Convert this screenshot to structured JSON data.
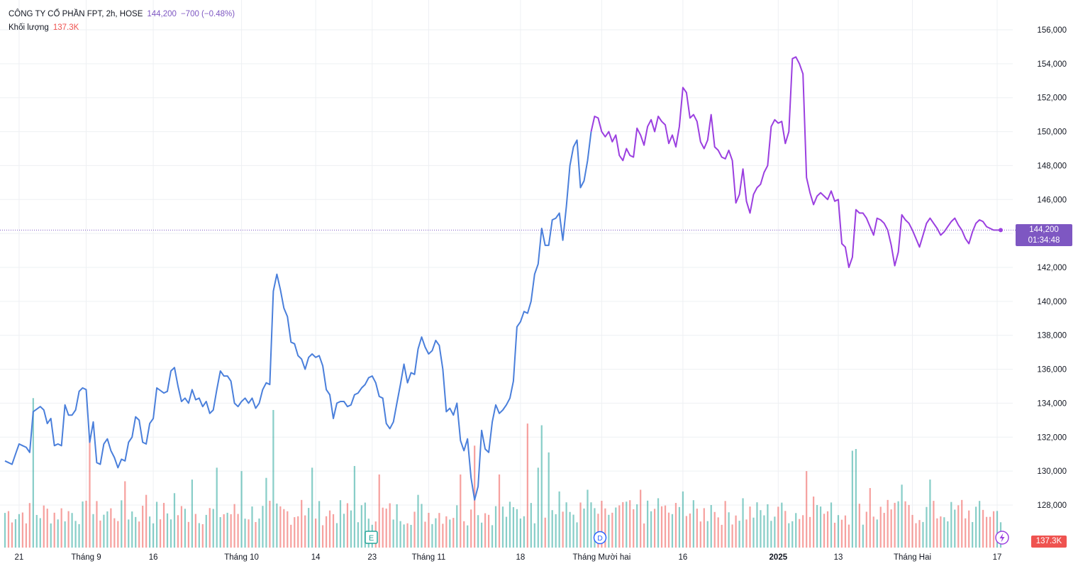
{
  "legend": {
    "symbol": "CÔNG TY CỔ PHẦN FPT, 2h, HOSE",
    "last": "144,200",
    "change": "−700 (−0.48%)",
    "volume_label": "Khối lượng",
    "volume_value": "137.3K"
  },
  "price_tag": {
    "price": "144,200",
    "countdown": "01:34:48"
  },
  "volume_tag": "137.3K",
  "markers": {
    "earnings": "E",
    "dividend": "D"
  },
  "colors": {
    "line_blue": "#4a7fdb",
    "line_purple": "#9b3fe0",
    "vol_up": "#26a69a",
    "vol_down": "#ef5350",
    "grid": "#eef0f3",
    "accent": "#7e57c2"
  },
  "chart_data": {
    "type": "line",
    "title": "CÔNG TY CỔ PHẦN FPT, 2h, HOSE",
    "ylim": [
      126500,
      157000
    ],
    "y_ticks": [
      128000,
      130000,
      132000,
      134000,
      136000,
      138000,
      140000,
      142000,
      144000,
      146000,
      148000,
      150000,
      152000,
      154000,
      156000
    ],
    "y_tick_labels": [
      "128,000",
      "130,000",
      "132,000",
      "134,000",
      "136,000",
      "138,000",
      "140,000",
      "142,000",
      "144,000",
      "146,000",
      "148,000",
      "150,000",
      "152,000",
      "154,000",
      "156,000"
    ],
    "x_labels": [
      {
        "text": "21",
        "i": 4,
        "bold": false
      },
      {
        "text": "Tháng 9",
        "i": 23,
        "bold": false
      },
      {
        "text": "16",
        "i": 42,
        "bold": false
      },
      {
        "text": "Tháng 10",
        "i": 67,
        "bold": false
      },
      {
        "text": "14",
        "i": 88,
        "bold": false
      },
      {
        "text": "23",
        "i": 104,
        "bold": false
      },
      {
        "text": "Tháng 11",
        "i": 120,
        "bold": false
      },
      {
        "text": "18",
        "i": 146,
        "bold": false
      },
      {
        "text": "Tháng Mười hai",
        "i": 169,
        "bold": false
      },
      {
        "text": "16",
        "i": 192,
        "bold": false
      },
      {
        "text": "2025",
        "i": 219,
        "bold": true
      },
      {
        "text": "13",
        "i": 236,
        "bold": false
      },
      {
        "text": "Tháng Hai",
        "i": 257,
        "bold": false
      },
      {
        "text": "17",
        "i": 281,
        "bold": false
      }
    ],
    "n_bars": 283,
    "color_switch_index": 166,
    "price_keypoints": [
      [
        0,
        130600
      ],
      [
        2,
        130400
      ],
      [
        4,
        131600
      ],
      [
        6,
        131400
      ],
      [
        7,
        131100
      ],
      [
        8,
        133500
      ],
      [
        10,
        133800
      ],
      [
        11,
        133600
      ],
      [
        12,
        132800
      ],
      [
        13,
        133100
      ],
      [
        14,
        131500
      ],
      [
        15,
        131600
      ],
      [
        16,
        131500
      ],
      [
        17,
        133900
      ],
      [
        18,
        133300
      ],
      [
        19,
        133300
      ],
      [
        20,
        133600
      ],
      [
        21,
        134700
      ],
      [
        22,
        134900
      ],
      [
        23,
        134800
      ],
      [
        24,
        131700
      ],
      [
        25,
        132900
      ],
      [
        26,
        130500
      ],
      [
        27,
        130400
      ],
      [
        28,
        131600
      ],
      [
        29,
        131900
      ],
      [
        30,
        131200
      ],
      [
        31,
        130800
      ],
      [
        32,
        130200
      ],
      [
        33,
        130700
      ],
      [
        34,
        130600
      ],
      [
        35,
        131700
      ],
      [
        36,
        132000
      ],
      [
        37,
        133200
      ],
      [
        38,
        133000
      ],
      [
        39,
        131700
      ],
      [
        40,
        131600
      ],
      [
        41,
        132800
      ],
      [
        42,
        133100
      ],
      [
        43,
        134900
      ],
      [
        45,
        134600
      ],
      [
        46,
        134700
      ],
      [
        47,
        135900
      ],
      [
        48,
        136100
      ],
      [
        49,
        135000
      ],
      [
        50,
        134100
      ],
      [
        51,
        134300
      ],
      [
        52,
        134000
      ],
      [
        53,
        134800
      ],
      [
        54,
        134200
      ],
      [
        55,
        134300
      ],
      [
        56,
        133800
      ],
      [
        57,
        134100
      ],
      [
        58,
        133400
      ],
      [
        59,
        133600
      ],
      [
        60,
        134800
      ],
      [
        61,
        135900
      ],
      [
        62,
        135600
      ],
      [
        63,
        135600
      ],
      [
        64,
        135300
      ],
      [
        65,
        134000
      ],
      [
        66,
        133800
      ],
      [
        67,
        134100
      ],
      [
        68,
        134300
      ],
      [
        69,
        134000
      ],
      [
        70,
        134300
      ],
      [
        71,
        133700
      ],
      [
        72,
        134000
      ],
      [
        73,
        134800
      ],
      [
        74,
        135200
      ],
      [
        75,
        135100
      ],
      [
        76,
        140600
      ],
      [
        77,
        141600
      ],
      [
        78,
        140700
      ],
      [
        79,
        139600
      ],
      [
        80,
        139100
      ],
      [
        81,
        137600
      ],
      [
        82,
        137500
      ],
      [
        83,
        136800
      ],
      [
        84,
        136600
      ],
      [
        85,
        136000
      ],
      [
        86,
        136700
      ],
      [
        87,
        136900
      ],
      [
        88,
        136700
      ],
      [
        89,
        136800
      ],
      [
        90,
        136200
      ],
      [
        91,
        134800
      ],
      [
        92,
        134500
      ],
      [
        93,
        133100
      ],
      [
        94,
        134000
      ],
      [
        95,
        134100
      ],
      [
        96,
        134100
      ],
      [
        97,
        133800
      ],
      [
        98,
        133900
      ],
      [
        99,
        134500
      ],
      [
        100,
        134600
      ],
      [
        101,
        134900
      ],
      [
        102,
        135100
      ],
      [
        103,
        135500
      ],
      [
        104,
        135600
      ],
      [
        105,
        135200
      ],
      [
        106,
        134400
      ],
      [
        107,
        134300
      ],
      [
        108,
        132800
      ],
      [
        109,
        132500
      ],
      [
        110,
        132900
      ],
      [
        111,
        134000
      ],
      [
        112,
        135100
      ],
      [
        113,
        136300
      ],
      [
        114,
        135200
      ],
      [
        115,
        135800
      ],
      [
        116,
        135700
      ],
      [
        117,
        137200
      ],
      [
        118,
        137900
      ],
      [
        119,
        137300
      ],
      [
        120,
        136900
      ],
      [
        121,
        137100
      ],
      [
        122,
        137700
      ],
      [
        123,
        137400
      ],
      [
        124,
        136000
      ],
      [
        125,
        133500
      ],
      [
        126,
        133700
      ],
      [
        127,
        133300
      ],
      [
        128,
        134000
      ],
      [
        129,
        131800
      ],
      [
        130,
        131200
      ],
      [
        131,
        131900
      ],
      [
        132,
        129600
      ],
      [
        133,
        128300
      ],
      [
        134,
        129100
      ],
      [
        135,
        132400
      ],
      [
        136,
        131300
      ],
      [
        137,
        131100
      ],
      [
        138,
        132900
      ],
      [
        139,
        133900
      ],
      [
        140,
        133400
      ],
      [
        141,
        133600
      ],
      [
        142,
        133900
      ],
      [
        143,
        134300
      ],
      [
        144,
        135300
      ],
      [
        145,
        138500
      ],
      [
        146,
        138800
      ],
      [
        147,
        139400
      ],
      [
        148,
        139300
      ],
      [
        149,
        140000
      ],
      [
        150,
        141600
      ],
      [
        151,
        142200
      ],
      [
        152,
        144300
      ],
      [
        153,
        143300
      ],
      [
        154,
        143300
      ],
      [
        155,
        144800
      ],
      [
        156,
        144900
      ],
      [
        157,
        145200
      ],
      [
        158,
        143600
      ],
      [
        159,
        145600
      ],
      [
        160,
        148000
      ],
      [
        161,
        149100
      ],
      [
        162,
        149500
      ],
      [
        163,
        146700
      ],
      [
        164,
        147100
      ],
      [
        165,
        148300
      ],
      [
        166,
        150000
      ],
      [
        167,
        150900
      ],
      [
        168,
        150800
      ],
      [
        169,
        150000
      ],
      [
        170,
        149700
      ],
      [
        171,
        150000
      ],
      [
        172,
        149400
      ],
      [
        173,
        149800
      ],
      [
        174,
        148600
      ],
      [
        175,
        148300
      ],
      [
        176,
        149000
      ],
      [
        177,
        148600
      ],
      [
        178,
        148500
      ],
      [
        179,
        150200
      ],
      [
        180,
        149800
      ],
      [
        181,
        149200
      ],
      [
        182,
        150300
      ],
      [
        183,
        150700
      ],
      [
        184,
        150000
      ],
      [
        185,
        150900
      ],
      [
        186,
        150600
      ],
      [
        187,
        150400
      ],
      [
        188,
        149300
      ],
      [
        189,
        149800
      ],
      [
        190,
        149100
      ],
      [
        191,
        150300
      ],
      [
        192,
        152600
      ],
      [
        193,
        152300
      ],
      [
        194,
        150800
      ],
      [
        195,
        151000
      ],
      [
        196,
        150600
      ],
      [
        197,
        149400
      ],
      [
        198,
        149000
      ],
      [
        199,
        149500
      ],
      [
        200,
        151000
      ],
      [
        201,
        149100
      ],
      [
        202,
        148900
      ],
      [
        203,
        148500
      ],
      [
        204,
        148400
      ],
      [
        205,
        148900
      ],
      [
        206,
        148300
      ],
      [
        207,
        145800
      ],
      [
        208,
        146300
      ],
      [
        209,
        147800
      ],
      [
        210,
        145900
      ],
      [
        211,
        145200
      ],
      [
        212,
        146300
      ],
      [
        213,
        146700
      ],
      [
        214,
        146900
      ],
      [
        215,
        147600
      ],
      [
        216,
        148000
      ],
      [
        217,
        150300
      ],
      [
        218,
        150700
      ],
      [
        219,
        150500
      ],
      [
        220,
        150600
      ],
      [
        221,
        149300
      ],
      [
        222,
        150000
      ],
      [
        223,
        154300
      ],
      [
        224,
        154400
      ],
      [
        225,
        154000
      ],
      [
        226,
        153400
      ],
      [
        227,
        147300
      ],
      [
        228,
        146400
      ],
      [
        229,
        145700
      ],
      [
        230,
        146200
      ],
      [
        231,
        146400
      ],
      [
        232,
        146200
      ],
      [
        233,
        146000
      ],
      [
        234,
        146500
      ],
      [
        235,
        145900
      ],
      [
        236,
        146000
      ],
      [
        237,
        143400
      ],
      [
        238,
        143200
      ],
      [
        239,
        142000
      ],
      [
        240,
        142600
      ],
      [
        241,
        145400
      ],
      [
        242,
        145200
      ],
      [
        243,
        145200
      ],
      [
        244,
        144900
      ],
      [
        245,
        144400
      ],
      [
        246,
        143900
      ],
      [
        247,
        144900
      ],
      [
        248,
        144800
      ],
      [
        249,
        144600
      ],
      [
        250,
        144200
      ],
      [
        251,
        143300
      ],
      [
        252,
        142100
      ],
      [
        253,
        142900
      ],
      [
        254,
        145100
      ],
      [
        255,
        144800
      ],
      [
        256,
        144600
      ],
      [
        257,
        144200
      ],
      [
        258,
        143700
      ],
      [
        259,
        143200
      ],
      [
        260,
        143900
      ],
      [
        261,
        144600
      ],
      [
        262,
        144900
      ],
      [
        263,
        144600
      ],
      [
        264,
        144300
      ],
      [
        265,
        143900
      ],
      [
        266,
        144100
      ],
      [
        267,
        144400
      ],
      [
        268,
        144700
      ],
      [
        269,
        144900
      ],
      [
        270,
        144500
      ],
      [
        271,
        144200
      ],
      [
        272,
        143700
      ],
      [
        273,
        143400
      ],
      [
        274,
        144100
      ],
      [
        275,
        144600
      ],
      [
        276,
        144800
      ],
      [
        277,
        144700
      ],
      [
        278,
        144400
      ],
      [
        279,
        144300
      ],
      [
        280,
        144200
      ],
      [
        281,
        144200
      ],
      [
        282,
        144200
      ]
    ],
    "volume_spikes": [
      [
        8,
        134300
      ],
      [
        24,
        132000
      ],
      [
        34,
        129400
      ],
      [
        40,
        128600
      ],
      [
        48,
        128700
      ],
      [
        53,
        129500
      ],
      [
        60,
        130200
      ],
      [
        67,
        130000
      ],
      [
        74,
        129600
      ],
      [
        76,
        133600
      ],
      [
        84,
        128300
      ],
      [
        87,
        130200
      ],
      [
        99,
        130300
      ],
      [
        106,
        129800
      ],
      [
        117,
        128600
      ],
      [
        129,
        129800
      ],
      [
        133,
        131500
      ],
      [
        140,
        129800
      ],
      [
        148,
        132800
      ],
      [
        151,
        130200
      ],
      [
        152,
        132700
      ],
      [
        154,
        131100
      ],
      [
        157,
        128800
      ],
      [
        165,
        128900
      ],
      [
        170,
        127800
      ],
      [
        176,
        128200
      ],
      [
        180,
        128900
      ],
      [
        185,
        128400
      ],
      [
        192,
        128800
      ],
      [
        200,
        128000
      ],
      [
        209,
        128400
      ],
      [
        219,
        127900
      ],
      [
        227,
        130000
      ],
      [
        229,
        128500
      ],
      [
        230,
        128000
      ],
      [
        240,
        131200
      ],
      [
        241,
        131300
      ],
      [
        245,
        129000
      ],
      [
        250,
        128300
      ],
      [
        254,
        129200
      ],
      [
        262,
        129500
      ],
      [
        271,
        128300
      ],
      [
        275,
        127900
      ]
    ]
  }
}
